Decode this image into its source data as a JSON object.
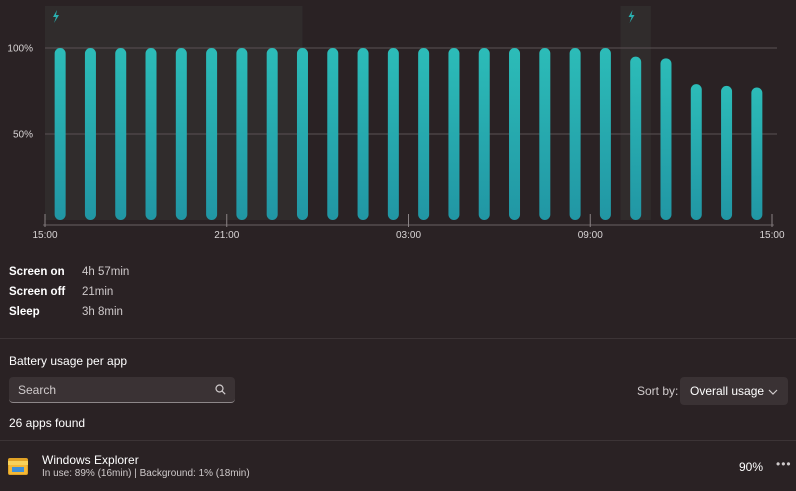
{
  "chart_data": {
    "type": "bar",
    "ylim": [
      0,
      100
    ],
    "yticks": [
      {
        "value": 100,
        "label": "100%"
      },
      {
        "value": 50,
        "label": "50%"
      }
    ],
    "x_labels": [
      {
        "index": 0,
        "label": "15:00"
      },
      {
        "index": 6,
        "label": "21:00"
      },
      {
        "index": 12,
        "label": "03:00"
      },
      {
        "index": 18,
        "label": "09:00"
      },
      {
        "index": 24,
        "label": "15:00"
      }
    ],
    "values": [
      100,
      100,
      100,
      100,
      100,
      100,
      100,
      100,
      100,
      100,
      100,
      100,
      100,
      100,
      100,
      100,
      100,
      100,
      100,
      95,
      94,
      79,
      78,
      77
    ],
    "charging_ranges": [
      [
        0,
        8.5
      ],
      [
        19,
        20
      ]
    ],
    "bar_color": "#2ab0b0",
    "charging_color": "#2ab0b0",
    "grid": true
  },
  "stats": [
    {
      "label": "Screen on",
      "value": "4h 57min"
    },
    {
      "label": "Screen off",
      "value": "21min"
    },
    {
      "label": "Sleep",
      "value": "3h 8min"
    }
  ],
  "section_title": "Battery usage per app",
  "search": {
    "placeholder": "Search",
    "value": ""
  },
  "sort": {
    "label": "Sort by:",
    "selected": "Overall usage"
  },
  "apps_found": "26 apps found",
  "apps": [
    {
      "name": "Windows Explorer",
      "detail": "In use: 89% (16min) | Background: 1% (18min)",
      "percent": "90%",
      "icon": "folder-icon"
    }
  ]
}
